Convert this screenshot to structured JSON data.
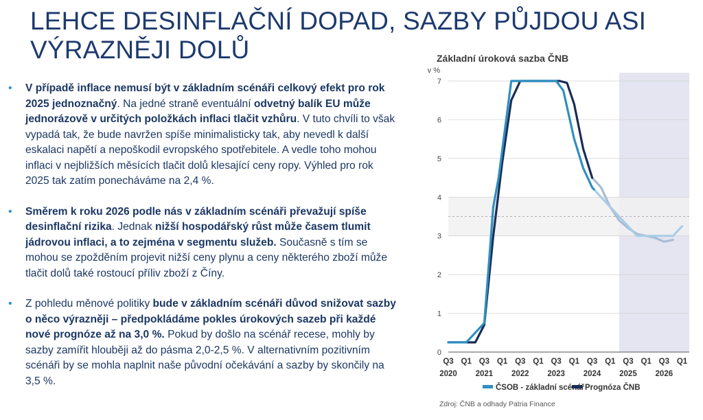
{
  "slide": {
    "title_line1": "LEHCE DESINFLAČNÍ DOPAD, SAZBY PŮJDOU ASI",
    "title_line2": "VÝRAZNĚJI DOLŮ",
    "bullets": [
      {
        "parts": [
          {
            "b": true,
            "t": "V případě inflace nemusí být v základním scénáři celkový efekt pro rok 2025 jednoznačný"
          },
          {
            "b": false,
            "t": ". Na jedné straně eventuální "
          },
          {
            "b": true,
            "t": "odvetný balík EU může jednorázově v určitých položkách inflaci tlačit vzhůru"
          },
          {
            "b": false,
            "t": ". V tuto chvíli to však vypadá tak, že bude navržen spíše minimalisticky tak, aby nevedl k další eskalaci napětí a nepoškodil evropského spotřebitele. A vedle toho mohou inflaci v nejbližších měsících tlačit dolů klesající ceny ropy. Výhled pro rok 2025 tak zatím ponecháváme na 2,4 %."
          }
        ]
      },
      {
        "parts": [
          {
            "b": true,
            "t": "Směrem k roku 2026 podle nás v základním scénáři převažují spíše desinflační rizika"
          },
          {
            "b": false,
            "t": ". Jednak "
          },
          {
            "b": true,
            "t": "nižší hospodářský růst může časem tlumit jádrovou inflaci, a to zejména v segmentu služeb."
          },
          {
            "b": false,
            "t": " Současně s tím se mohou se zpožděním projevit nižší ceny plynu a ceny některého zboží může tlačit dolů také rostoucí příliv zboží z Číny."
          }
        ]
      },
      {
        "parts": [
          {
            "b": false,
            "t": "Z pohledu měnové politiky "
          },
          {
            "b": true,
            "t": "bude v základním scénáři důvod snižovat sazby o něco výrazněji – předpokládáme pokles úrokových sazeb při každé nové prognóze až na 3,0 %."
          },
          {
            "b": false,
            "t": " Pokud by došlo na scénář recese, mohly by sazby zamířit hlouběji až do pásma 2,0-2,5 %. V alternativním pozitivním scénáři by se mohla naplnit naše původní očekávání a sazby by skončily na 3,5 %."
          }
        ]
      }
    ]
  },
  "chart_data": {
    "type": "line",
    "title": "Základní úroková sazba ČNB",
    "ylabel": "v %",
    "ylim": [
      0,
      7
    ],
    "yticks": [
      0,
      1,
      2,
      3,
      4,
      5,
      6,
      7
    ],
    "x_quarter_range": [
      2020.5,
      2027.0
    ],
    "x_ticks": [
      {
        "q": "Q3",
        "year": "2020",
        "x": 2020.5
      },
      {
        "q": "Q1",
        "year": "",
        "x": 2021.0
      },
      {
        "q": "Q3",
        "year": "2021",
        "x": 2021.5
      },
      {
        "q": "Q1",
        "year": "",
        "x": 2022.0
      },
      {
        "q": "Q3",
        "year": "2022",
        "x": 2022.5
      },
      {
        "q": "Q1",
        "year": "",
        "x": 2023.0
      },
      {
        "q": "Q3",
        "year": "2023",
        "x": 2023.5
      },
      {
        "q": "Q1",
        "year": "",
        "x": 2024.0
      },
      {
        "q": "Q3",
        "year": "2024",
        "x": 2024.5
      },
      {
        "q": "Q1",
        "year": "",
        "x": 2025.0
      },
      {
        "q": "Q3",
        "year": "2025",
        "x": 2025.5
      },
      {
        "q": "Q1",
        "year": "",
        "x": 2026.0
      },
      {
        "q": "Q3",
        "year": "2026",
        "x": 2026.5
      },
      {
        "q": "Q1",
        "year": "",
        "x": 2027.0
      }
    ],
    "forecast_shading": {
      "from": 2025.25,
      "to": 2027.2,
      "color": "#e4e5f1"
    },
    "target_band": {
      "low": 3,
      "high": 4,
      "mid": 3.5,
      "color": "#f1f1f1"
    },
    "series": [
      {
        "name": "ČSOB - základní scénář",
        "color": "#2f8fc1",
        "forecast_color": "#a9cde6",
        "forecast_from": 2024.55,
        "points": [
          [
            2020.5,
            0.25
          ],
          [
            2020.75,
            0.25
          ],
          [
            2021.0,
            0.25
          ],
          [
            2021.25,
            0.5
          ],
          [
            2021.5,
            0.75
          ],
          [
            2021.75,
            3.75
          ],
          [
            2021.9,
            4.5
          ],
          [
            2022.25,
            7.0
          ],
          [
            2022.5,
            7.0
          ],
          [
            2023.0,
            7.0
          ],
          [
            2023.5,
            7.0
          ],
          [
            2023.7,
            6.75
          ],
          [
            2024.0,
            5.5
          ],
          [
            2024.25,
            4.75
          ],
          [
            2024.5,
            4.25
          ],
          [
            2024.75,
            4.0
          ],
          [
            2025.0,
            3.75
          ],
          [
            2025.25,
            3.5
          ],
          [
            2025.5,
            3.25
          ],
          [
            2025.75,
            3.0
          ],
          [
            2026.0,
            3.0
          ],
          [
            2026.25,
            3.0
          ],
          [
            2026.5,
            3.0
          ],
          [
            2026.75,
            3.0
          ],
          [
            2027.0,
            3.25
          ]
        ]
      },
      {
        "name": "Prognóza ČNB",
        "color": "#1b2d55",
        "forecast_color": "#a9bcd2",
        "forecast_from": 2024.5,
        "points": [
          [
            2020.5,
            0.25
          ],
          [
            2021.0,
            0.25
          ],
          [
            2021.25,
            0.25
          ],
          [
            2021.5,
            0.7
          ],
          [
            2021.75,
            3.0
          ],
          [
            2022.0,
            4.9
          ],
          [
            2022.25,
            6.5
          ],
          [
            2022.5,
            7.0
          ],
          [
            2023.0,
            7.0
          ],
          [
            2023.6,
            7.0
          ],
          [
            2023.8,
            6.95
          ],
          [
            2024.0,
            6.4
          ],
          [
            2024.25,
            5.25
          ],
          [
            2024.5,
            4.5
          ],
          [
            2024.75,
            4.25
          ],
          [
            2025.0,
            3.75
          ],
          [
            2025.25,
            3.4
          ],
          [
            2025.5,
            3.2
          ],
          [
            2025.75,
            3.05
          ],
          [
            2026.0,
            3.0
          ],
          [
            2026.25,
            2.95
          ],
          [
            2026.5,
            2.85
          ],
          [
            2026.75,
            2.9
          ]
        ]
      }
    ],
    "legend_position": "bottom"
  },
  "source_note": "Zdroj: ČNB a odhady Patria Finance"
}
